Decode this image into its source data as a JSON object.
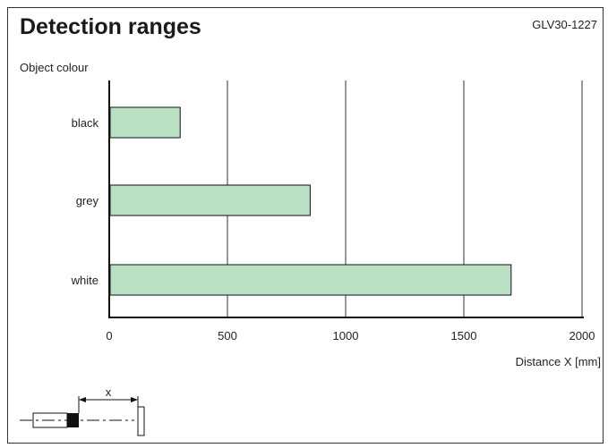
{
  "title": "Detection ranges",
  "code": "GLV30-1227",
  "chart_data": {
    "type": "bar",
    "orientation": "horizontal",
    "categories": [
      "black",
      "grey",
      "white"
    ],
    "values": [
      300,
      850,
      1700
    ],
    "xlim": [
      0,
      2000
    ],
    "xticks": [
      0,
      500,
      1000,
      1500,
      2000
    ],
    "xlabel": "Distance X [mm]",
    "ylabel": "Object colour",
    "grid": "vertical",
    "bar_color": "#b9e0c3"
  },
  "diagram": {
    "distance_label": "x"
  }
}
